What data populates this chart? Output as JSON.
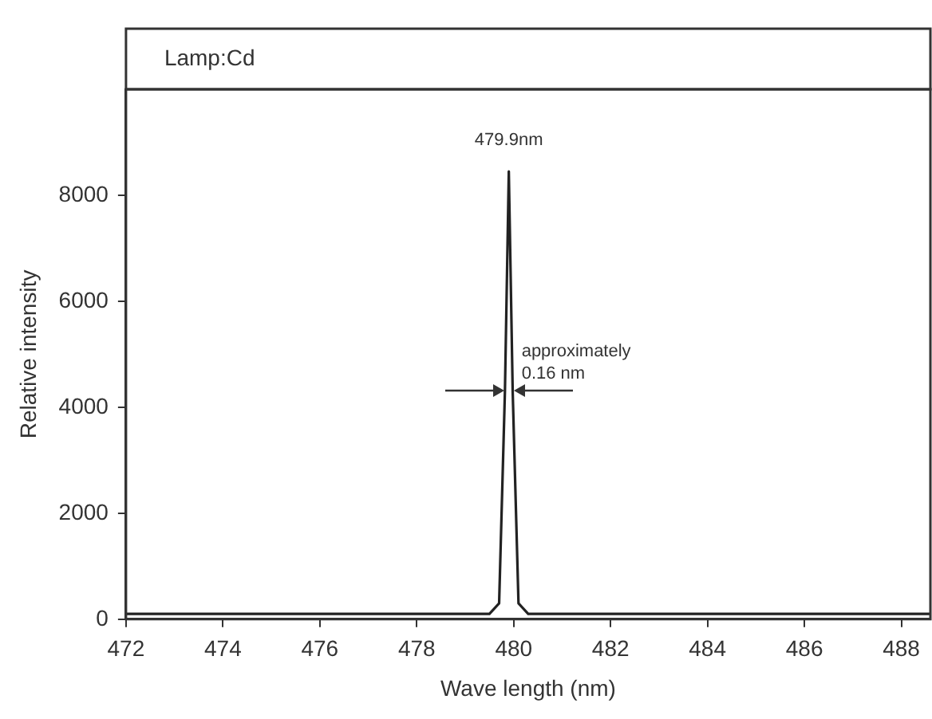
{
  "chart_data": {
    "type": "line",
    "title": "Lamp:Cd",
    "xlabel": "Wave length (nm)",
    "ylabel": "Relative intensity",
    "x": [
      472,
      479.5,
      479.7,
      479.82,
      479.9,
      479.98,
      480.1,
      480.3,
      488.6
    ],
    "series": [
      {
        "color": "#222222",
        "values": [
          100,
          100,
          300,
          4300,
          8450,
          4300,
          300,
          100,
          100
        ]
      }
    ],
    "xlim": [
      472,
      488.6
    ],
    "xticks": [
      472,
      474,
      476,
      478,
      480,
      482,
      484,
      486,
      488
    ],
    "ylim": [
      0,
      10000
    ],
    "yticks": [
      0,
      2000,
      4000,
      6000,
      8000
    ],
    "annotations": [
      {
        "text": "479.9nm",
        "x": 479.9,
        "y": 8450
      },
      {
        "text": "approximately\n0.16 nm",
        "x": 479.9,
        "y": 4300
      }
    ],
    "grid": false,
    "legend": false,
    "marker": "none",
    "line_style": "solid"
  }
}
